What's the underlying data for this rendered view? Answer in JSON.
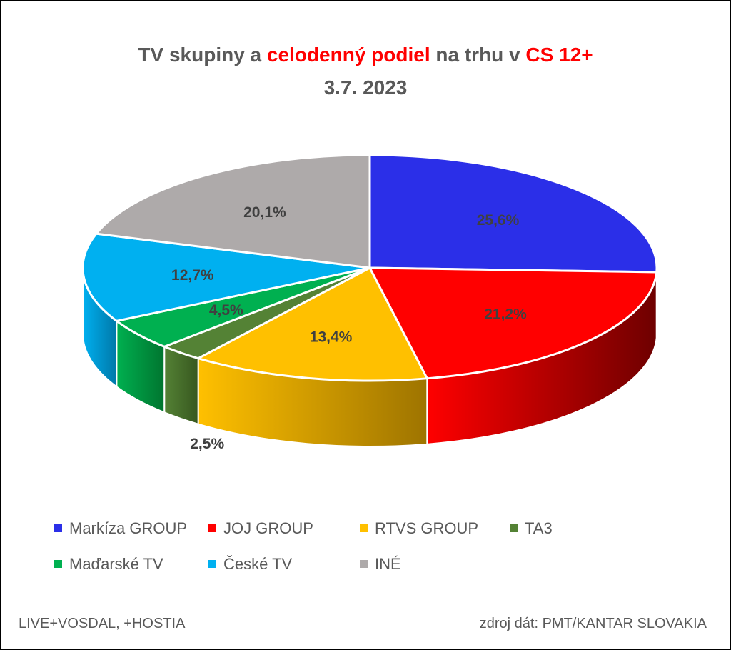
{
  "title": {
    "part1": "TV skupiny a ",
    "part2": "celodenný podiel",
    "part3": " na trhu v ",
    "part4": "CS 12+",
    "line2": "3.7. 2023"
  },
  "footer": {
    "left": "LIVE+VOSDAL, +HOSTIA",
    "right": "zdroj dát: PMT/KANTAR SLOVAKIA"
  },
  "colors": {
    "title_text": "#595959",
    "title_accent": "#ff0000",
    "border": "#000000"
  },
  "chart_data": {
    "type": "pie",
    "subtype": "3d",
    "categories": [
      "Markíza GROUP",
      "JOJ GROUP",
      "RTVS GROUP",
      "TA3",
      "Maďarské  TV",
      "České  TV",
      "INÉ"
    ],
    "values": [
      25.6,
      21.2,
      13.4,
      2.5,
      4.5,
      12.7,
      20.1
    ],
    "labels": [
      "25,6%",
      "21,2%",
      "13,4%",
      "2,5%",
      "4,5%",
      "12,7%",
      "20,1%"
    ],
    "colors": [
      "#2b2fe8",
      "#ff0000",
      "#ffc000",
      "#548235",
      "#00b050",
      "#00b0f0",
      "#aeaaaa"
    ],
    "side_colors": [
      "#1a1c8a",
      "#6e0000",
      "#9e7400",
      "#37571f",
      "#00752f",
      "#0078a8",
      "#6e6a6a"
    ],
    "legend_position": "bottom"
  }
}
